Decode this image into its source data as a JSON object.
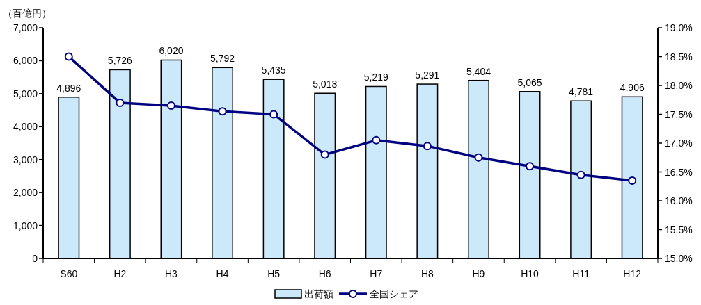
{
  "chart_data": {
    "type": "bar",
    "ylabel": "（百億円）",
    "categories": [
      "S60",
      "H2",
      "H3",
      "H4",
      "H5",
      "H6",
      "H7",
      "H8",
      "H9",
      "H10",
      "H11",
      "H12"
    ],
    "series": [
      {
        "name": "出荷額",
        "color": "#cce9fb",
        "values": [
          4896,
          5726,
          6020,
          5792,
          5435,
          5013,
          5219,
          5291,
          5404,
          5065,
          4781,
          4906
        ],
        "value_labels": [
          "4,896",
          "5,726",
          "6,020",
          "5,792",
          "5,435",
          "5,013",
          "5,219",
          "5,291",
          "5,404",
          "5,065",
          "4,781",
          "4,906"
        ]
      },
      {
        "name": "全国シェア",
        "type": "line",
        "axis": "y2",
        "color": "#000080",
        "marker": "circle",
        "values": [
          18.5,
          17.7,
          17.65,
          17.55,
          17.5,
          16.8,
          17.05,
          16.95,
          16.75,
          16.6,
          16.45,
          16.35
        ]
      }
    ],
    "ylim": [
      0,
      7000
    ],
    "yticks": [
      0,
      {
        "value": 1000,
        "label": "1,000"
      },
      {
        "value": 2000,
        "label": "2,000"
      },
      {
        "value": 3000,
        "label": "3,000"
      },
      {
        "value": 4000,
        "label": "4,000"
      },
      {
        "value": 5000,
        "label": "5,000"
      },
      {
        "value": 6000,
        "label": "6,000"
      },
      {
        "value": 7000,
        "label": "7,000"
      }
    ],
    "y2lim": [
      15,
      19
    ],
    "y2ticks": [
      {
        "value": 15,
        "label": "15.0%"
      },
      {
        "value": 15.5,
        "label": "15.5%"
      },
      {
        "value": 16,
        "label": "16.0%"
      },
      {
        "value": 16.5,
        "label": "16.5%"
      },
      {
        "value": 17,
        "label": "17.0%"
      },
      {
        "value": 17.5,
        "label": "17.5%"
      },
      {
        "value": 18,
        "label": "18.0%"
      },
      {
        "value": 18.5,
        "label": "18.5%"
      },
      {
        "value": 19,
        "label": "19.0%"
      }
    ],
    "legend": "bottom"
  }
}
